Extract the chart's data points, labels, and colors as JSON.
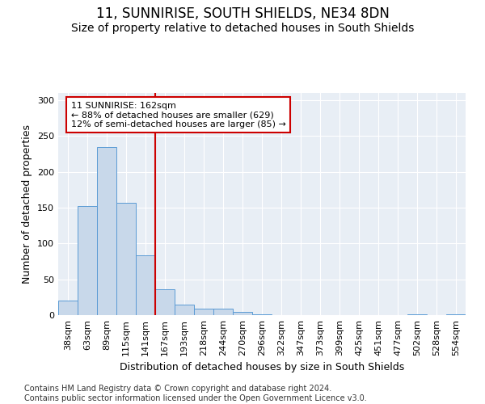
{
  "title": "11, SUNNIRISE, SOUTH SHIELDS, NE34 8DN",
  "subtitle": "Size of property relative to detached houses in South Shields",
  "xlabel": "Distribution of detached houses by size in South Shields",
  "ylabel": "Number of detached properties",
  "categories": [
    "38sqm",
    "63sqm",
    "89sqm",
    "115sqm",
    "141sqm",
    "167sqm",
    "193sqm",
    "218sqm",
    "244sqm",
    "270sqm",
    "296sqm",
    "322sqm",
    "347sqm",
    "373sqm",
    "399sqm",
    "425sqm",
    "451sqm",
    "477sqm",
    "502sqm",
    "528sqm",
    "554sqm"
  ],
  "values": [
    20,
    152,
    235,
    157,
    83,
    36,
    15,
    9,
    9,
    5,
    1,
    0,
    0,
    0,
    0,
    0,
    0,
    0,
    1,
    0,
    1
  ],
  "bar_color": "#c8d8ea",
  "bar_edge_color": "#5b9bd5",
  "vline_color": "#cc0000",
  "vline_index": 5,
  "annotation_text": "11 SUNNIRISE: 162sqm\n← 88% of detached houses are smaller (629)\n12% of semi-detached houses are larger (85) →",
  "annotation_box_edgecolor": "#cc0000",
  "ylim": [
    0,
    310
  ],
  "yticks": [
    0,
    50,
    100,
    150,
    200,
    250,
    300
  ],
  "fig_background": "#ffffff",
  "plot_background": "#e8eef5",
  "grid_color": "#ffffff",
  "title_fontsize": 12,
  "subtitle_fontsize": 10,
  "label_fontsize": 9,
  "tick_fontsize": 8,
  "annotation_fontsize": 8,
  "footnote_fontsize": 7,
  "footnote": "Contains HM Land Registry data © Crown copyright and database right 2024.\nContains public sector information licensed under the Open Government Licence v3.0."
}
